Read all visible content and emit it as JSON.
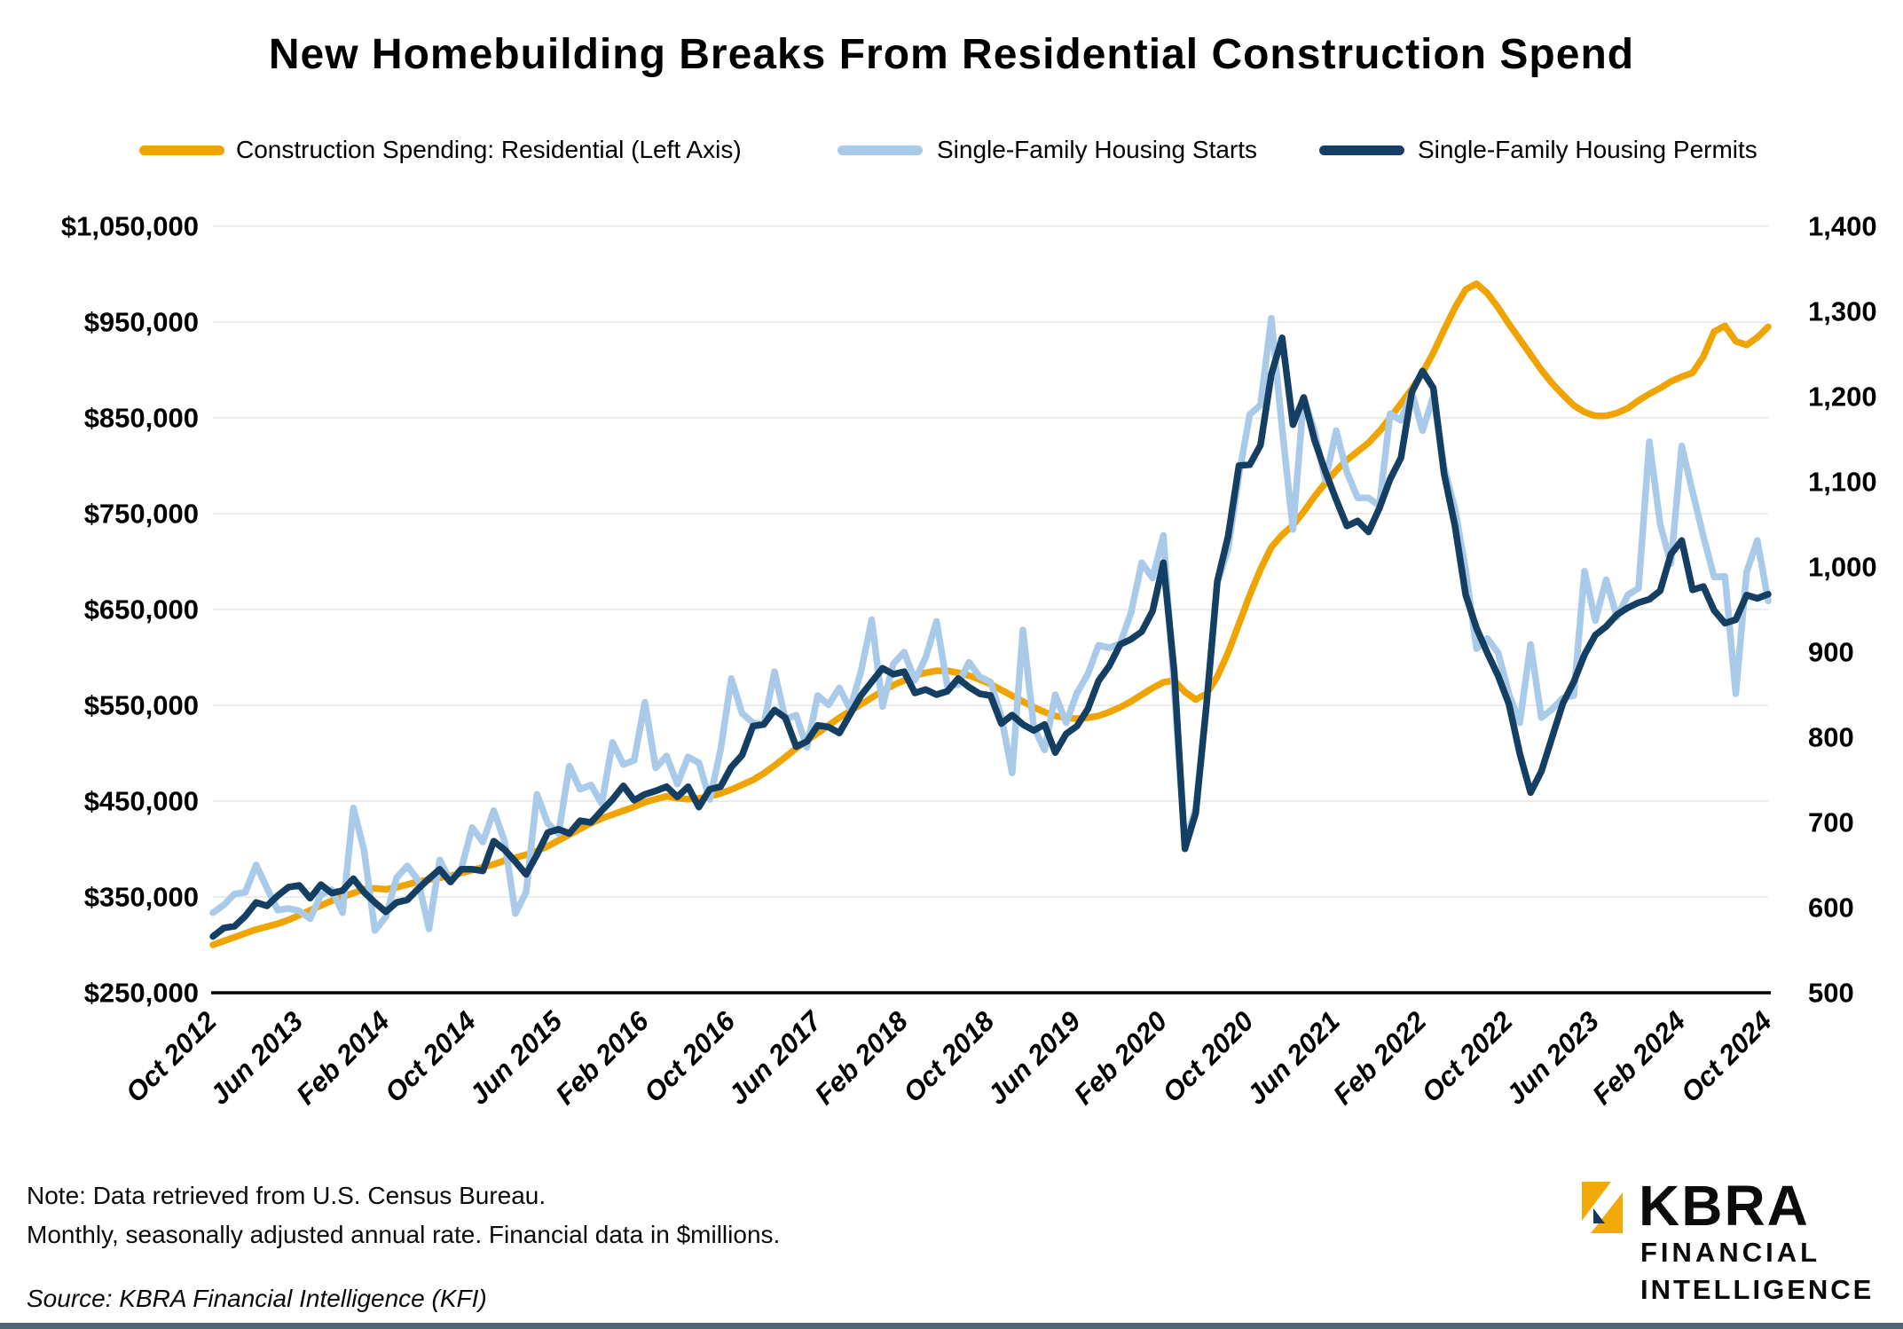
{
  "header": {
    "title": "New Homebuilding Breaks From Residential Construction Spend"
  },
  "notes": {
    "line1": "Note: Data retrieved from U.S. Census Bureau.",
    "line2": "Monthly, seasonally adjusted annual rate. Financial data in $millions.",
    "source": "Source: KBRA Financial Intelligence (KFI)"
  },
  "logo": {
    "brand": "KBRA",
    "line1": "FINANCIAL",
    "line2": "INTELLIGENCE",
    "gold": "#F2A90A",
    "dark": "#15395B"
  },
  "colors": {
    "background": "#FFFFFF",
    "gridline": "#ECECEC",
    "axis_line": "#000000",
    "bottom_bar": "#4D6670",
    "text": "#000000"
  },
  "chart_data": {
    "type": "line",
    "title": "New Homebuilding Breaks From Residential Construction Spend",
    "frequency": "monthly",
    "x_start": "Oct 2012",
    "x_end": "Oct 2024",
    "n_points": 145,
    "grid": "horizontal",
    "legend_position": "top",
    "x_tick_labels": [
      "Oct 2012",
      "Jun 2013",
      "Feb 2014",
      "Oct 2014",
      "Jun 2015",
      "Feb 2016",
      "Oct 2016",
      "Jun 2017",
      "Feb 2018",
      "Oct 2018",
      "Jun 2019",
      "Feb 2020",
      "Oct 2020",
      "Jun 2021",
      "Feb 2022",
      "Oct 2022",
      "Jun 2023",
      "Feb 2024",
      "Oct 2024"
    ],
    "left_axis": {
      "applies_to": "Construction Spending: Residential",
      "unit": "$millions",
      "min": 250000,
      "max": 1050000,
      "tick_labels_top_to_bottom": [
        "$1,050,000",
        "$950,000",
        "$850,000",
        "$750,000",
        "$650,000",
        "$550,000",
        "$450,000",
        "$350,000",
        "$250,000"
      ]
    },
    "right_axis": {
      "applies_to": "Single-Family Housing Starts and Permits",
      "unit": "thousands of units, SAAR",
      "min": 500,
      "max": 1400,
      "tick_labels_top_to_bottom": [
        "1,400",
        "1,300",
        "1,200",
        "1,100",
        "1,000",
        "900",
        "800",
        "700",
        "600",
        "500"
      ]
    },
    "series": [
      {
        "name": "Construction Spending: Residential (Left Axis)",
        "axis": "left",
        "color": "#F0A402",
        "values": [
          300000,
          304000,
          308000,
          312000,
          316000,
          319000,
          322000,
          326000,
          331000,
          336000,
          341000,
          346000,
          350000,
          354000,
          358000,
          359000,
          358000,
          360000,
          363000,
          366000,
          368000,
          370000,
          372000,
          375000,
          378000,
          381000,
          384000,
          388000,
          391000,
          394000,
          398000,
          403000,
          409000,
          415000,
          421000,
          427000,
          432000,
          436000,
          440000,
          444000,
          449000,
          452000,
          455000,
          453000,
          452000,
          453000,
          455000,
          458000,
          462000,
          467000,
          472000,
          479000,
          487000,
          496000,
          505000,
          513000,
          521000,
          529000,
          537000,
          544000,
          551000,
          558000,
          565000,
          571000,
          576000,
          581000,
          584000,
          586000,
          586000,
          584000,
          581000,
          577000,
          572000,
          566000,
          560000,
          554000,
          548000,
          543000,
          539000,
          537000,
          536000,
          537000,
          539000,
          543000,
          548000,
          554000,
          561000,
          568000,
          574000,
          576000,
          564000,
          556000,
          562000,
          580000,
          605000,
          635000,
          665000,
          692000,
          715000,
          728000,
          738000,
          752000,
          768000,
          782000,
          795000,
          806000,
          815000,
          824000,
          836000,
          850000,
          865000,
          880000,
          897000,
          918000,
          942000,
          965000,
          984000,
          990000,
          980000,
          965000,
          948000,
          932000,
          916000,
          900000,
          886000,
          874000,
          863000,
          856000,
          852000,
          852000,
          855000,
          860000,
          868000,
          875000,
          881000,
          888000,
          893000,
          897000,
          914000,
          940000,
          946000,
          930000,
          926000,
          934000,
          945000
        ]
      },
      {
        "name": "Single-Family Housing Starts",
        "axis": "right",
        "color": "#A9CAE9",
        "values": [
          594,
          603,
          616,
          618,
          650,
          623,
          597,
          599,
          596,
          587,
          615,
          621,
          594,
          717,
          667,
          573,
          589,
          635,
          649,
          632,
          575,
          656,
          631,
          646,
          694,
          677,
          714,
          678,
          593,
          618,
          733,
          699,
          687,
          766,
          739,
          744,
          722,
          794,
          768,
          773,
          841,
          764,
          778,
          745,
          777,
          770,
          727,
          785,
          869,
          828,
          817,
          815,
          877,
          821,
          826,
          788,
          849,
          838,
          858,
          833,
          877,
          938,
          836,
          886,
          900,
          867,
          894,
          936,
          860,
          862,
          888,
          871,
          865,
          824,
          758,
          926,
          812,
          785,
          850,
          817,
          852,
          874,
          908,
          905,
          910,
          946,
          1005,
          987,
          1037,
          856,
          675,
          717,
          839,
          981,
          1021,
          1108,
          1179,
          1190,
          1292,
          1162,
          1044,
          1199,
          1159,
          1102,
          1160,
          1111,
          1081,
          1081,
          1072,
          1180,
          1172,
          1205,
          1160,
          1200,
          1117,
          1068,
          996,
          904,
          916,
          899,
          851,
          817,
          909,
          823,
          833,
          846,
          849,
          995,
          937,
          985,
          941,
          967,
          975,
          1147,
          1050,
          1004,
          1142,
          1088,
          1036,
          988,
          989,
          851,
          994,
          1031,
          960
        ]
      },
      {
        "name": "Single-Family Housing Permits",
        "axis": "right",
        "color": "#153E63",
        "values": [
          566,
          576,
          578,
          590,
          606,
          602,
          614,
          624,
          626,
          611,
          627,
          617,
          620,
          634,
          618,
          606,
          595,
          606,
          609,
          622,
          634,
          645,
          630,
          645,
          645,
          643,
          678,
          668,
          654,
          639,
          662,
          688,
          692,
          687,
          702,
          700,
          714,
          727,
          743,
          726,
          733,
          737,
          742,
          730,
          742,
          718,
          739,
          742,
          765,
          779,
          813,
          815,
          832,
          823,
          789,
          795,
          814,
          812,
          805,
          827,
          849,
          865,
          881,
          874,
          877,
          852,
          856,
          850,
          854,
          869,
          859,
          851,
          849,
          816,
          826,
          815,
          808,
          815,
          782,
          804,
          813,
          833,
          866,
          884,
          909,
          915,
          924,
          948,
          1005,
          878,
          669,
          711,
          839,
          983,
          1036,
          1119,
          1120,
          1143,
          1226,
          1269,
          1167,
          1199,
          1149,
          1112,
          1079,
          1048,
          1054,
          1041,
          1069,
          1103,
          1128,
          1205,
          1230,
          1210,
          1109,
          1048,
          967,
          928,
          899,
          872,
          839,
          781,
          735,
          760,
          800,
          840,
          865,
          897,
          920,
          930,
          944,
          952,
          958,
          962,
          972,
          1015,
          1031,
          973,
          977,
          949,
          934,
          938,
          967,
          963,
          968
        ]
      }
    ]
  }
}
